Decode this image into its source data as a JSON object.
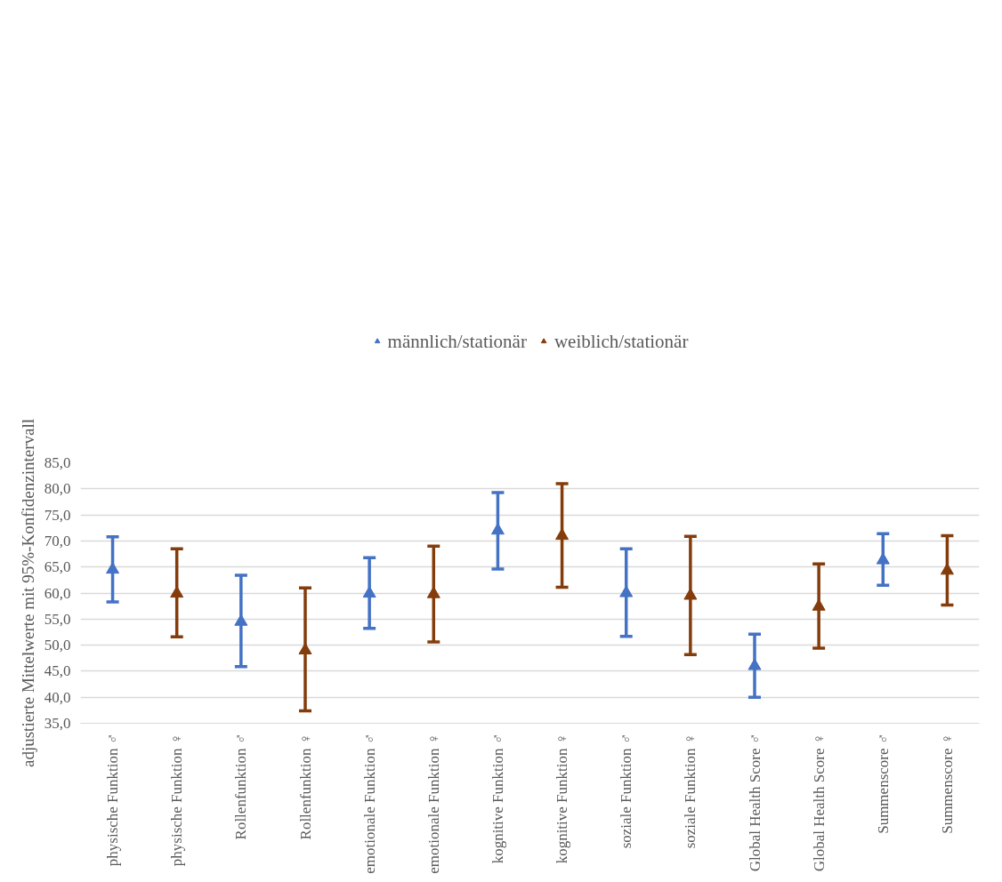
{
  "chart_data": {
    "type": "scatter",
    "ylabel": "adjustierte Mittelwerte mit 95%-Konfidenzintervall",
    "categories": [
      "physische Funktion ♂",
      "physische Funktion ♀",
      "Rollenfunktion ♂",
      "Rollenfunktion ♀",
      "emotionale Funktion ♂",
      "emotionale Funktion ♀",
      "kognitive Funktion ♂",
      "kognitive Funktion ♀",
      "soziale Funktion ♂",
      "soziale Funktion ♀",
      "Global Health Score ♂",
      "Global Health Score ♀",
      "Summenscore ♂",
      "Summenscore ♀"
    ],
    "series": [
      {
        "name": "männlich/stationär",
        "color": "#4472c4",
        "values": [
          64.5,
          null,
          54.5,
          null,
          59.9,
          null,
          72.0,
          null,
          60.0,
          null,
          46.0,
          null,
          66.3,
          null
        ],
        "errors": [
          [
            58.3,
            70.8
          ],
          null,
          [
            45.9,
            63.4
          ],
          null,
          [
            53.2,
            66.8
          ],
          null,
          [
            64.6,
            79.3
          ],
          null,
          [
            51.7,
            68.5
          ],
          null,
          [
            40.0,
            52.1
          ],
          null,
          [
            61.5,
            71.4
          ],
          null
        ]
      },
      {
        "name": "weiblich/stationär",
        "color": "#843c0c",
        "values": [
          null,
          59.9,
          null,
          49.0,
          null,
          59.8,
          null,
          71.0,
          null,
          59.5,
          null,
          57.4,
          null,
          64.3
        ],
        "errors": [
          null,
          [
            51.6,
            68.5
          ],
          null,
          [
            37.4,
            61.0
          ],
          null,
          [
            50.6,
            69.0
          ],
          null,
          [
            61.1,
            81.0
          ],
          null,
          [
            48.2,
            70.9
          ],
          null,
          [
            49.4,
            65.6
          ],
          null,
          [
            57.7,
            71.0
          ]
        ]
      }
    ],
    "ylim": [
      35,
      85
    ],
    "yticks": [
      {
        "value": 35,
        "label": "35,0"
      },
      {
        "value": 40,
        "label": "40,0"
      },
      {
        "value": 45,
        "label": "45,0"
      },
      {
        "value": 50,
        "label": "50,0"
      },
      {
        "value": 55,
        "label": "55,0"
      },
      {
        "value": 60,
        "label": "60,0"
      },
      {
        "value": 65,
        "label": "65,0"
      },
      {
        "value": 70,
        "label": "70,0"
      },
      {
        "value": 75,
        "label": "75,0"
      },
      {
        "value": 80,
        "label": "80,0"
      },
      {
        "value": 85,
        "label": "85,0"
      }
    ],
    "grid": "y",
    "legend": "top",
    "marker": "triangle"
  }
}
